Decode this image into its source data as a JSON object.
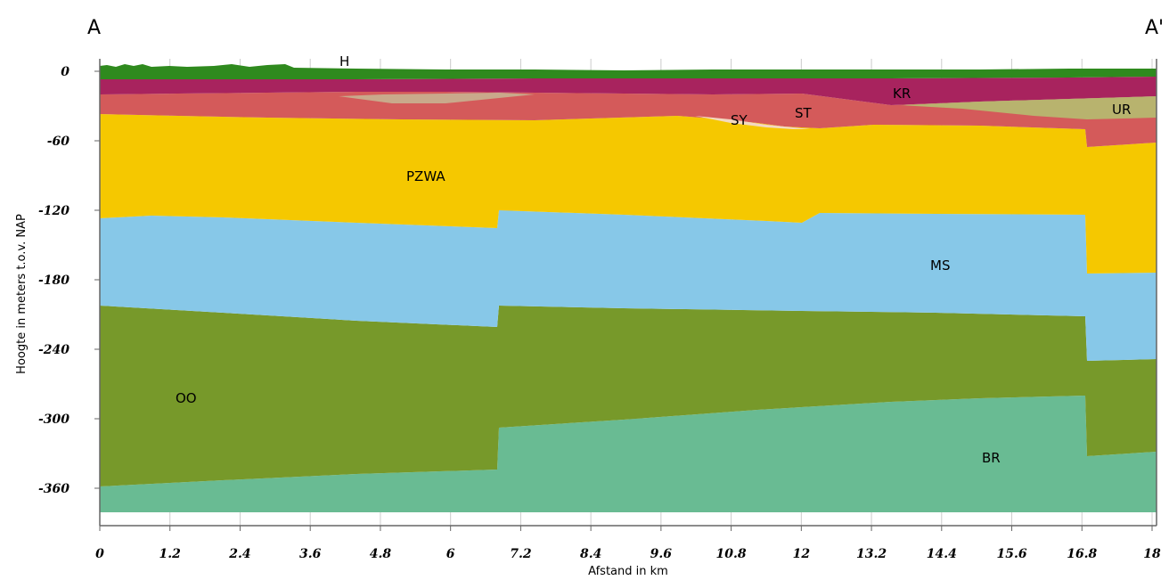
{
  "corners": {
    "left": "A",
    "right": "A'"
  },
  "axes": {
    "ylabel": "Hoogte in meters t.o.v. NAP",
    "xlabel": "Afstand in km",
    "y_ticks": [
      "0",
      "-60",
      "-120",
      "-180",
      "-240",
      "-300",
      "-360"
    ],
    "x_ticks": [
      "0",
      "1.2",
      "2.4",
      "3.6",
      "4.8",
      "6",
      "7.2",
      "8.4",
      "9.6",
      "10.8",
      "12",
      "13.2",
      "14.4",
      "15.6",
      "16.8",
      "18"
    ]
  },
  "units": [
    {
      "code": "H",
      "color": "#2f8a1e"
    },
    {
      "code": "KR",
      "color": "#a8235e"
    },
    {
      "code": "UR",
      "color": "#b8b36e"
    },
    {
      "code": "SY",
      "color": "#f3d9c0"
    },
    {
      "code": "ST",
      "color": "#d45a5a"
    },
    {
      "code": "PZWA",
      "color": "#f5c800"
    },
    {
      "code": "MS",
      "color": "#87c8e8"
    },
    {
      "code": "OO",
      "color": "#77992a"
    },
    {
      "code": "BR",
      "color": "#69bb93"
    }
  ],
  "colors": {
    "pink_lens": "#c9a98b",
    "gridline": "#cccccc"
  }
}
